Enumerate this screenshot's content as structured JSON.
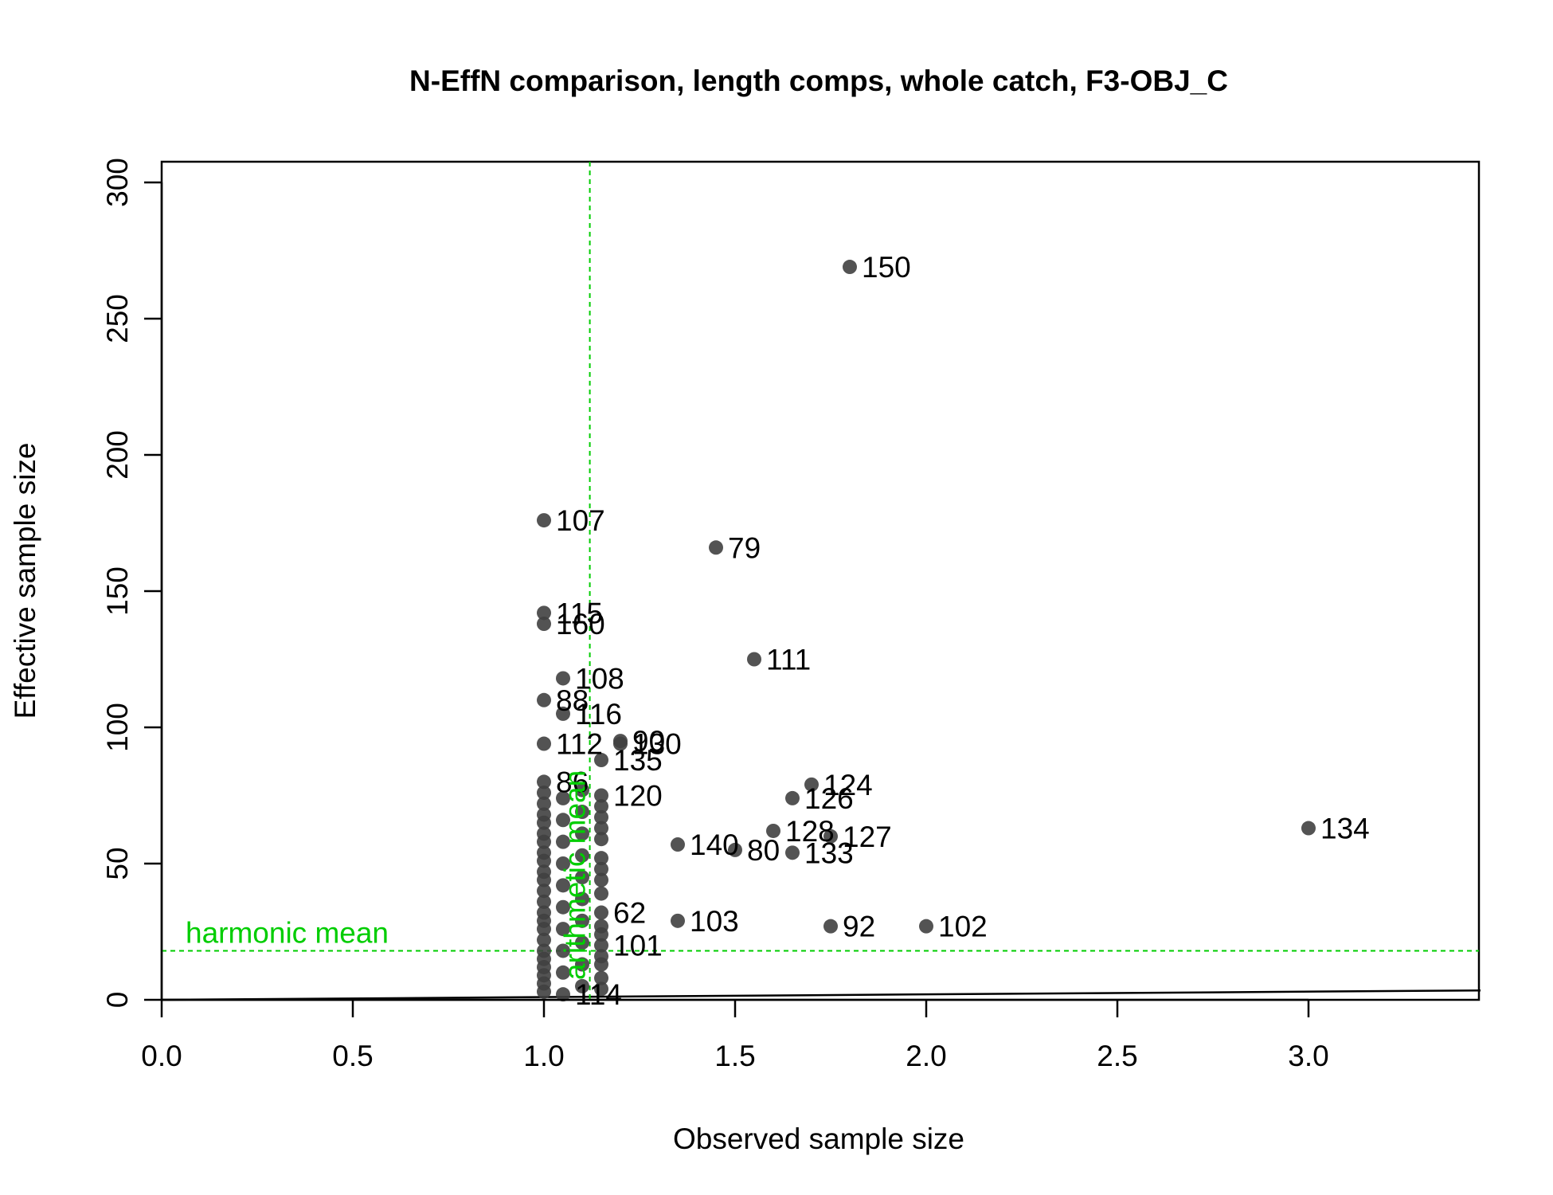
{
  "chart_data": {
    "type": "scatter",
    "title": "N-EffN comparison, length comps, whole catch, F3-OBJ_C",
    "xlabel": "Observed sample size",
    "ylabel": "Effective sample size",
    "xlim": [
      0,
      3.45
    ],
    "ylim": [
      0,
      300
    ],
    "x_ticks": [
      "0.0",
      "0.5",
      "1.0",
      "1.5",
      "2.0",
      "2.5",
      "3.0"
    ],
    "y_ticks": [
      "0",
      "50",
      "100",
      "150",
      "200",
      "250",
      "300"
    ],
    "point_color": "#404040",
    "reference_color": "#00cd00",
    "harmonic_mean": {
      "label": "harmonic mean",
      "y": 18
    },
    "arithmetic_mean": {
      "label": "arithmetic mean",
      "x": 1.12
    },
    "one_to_one_line": {
      "from": [
        0,
        0
      ],
      "to": [
        3.45,
        3.45
      ]
    },
    "points": [
      {
        "x": 1.8,
        "y": 269,
        "label": "150"
      },
      {
        "x": 1.0,
        "y": 176,
        "label": "107"
      },
      {
        "x": 1.45,
        "y": 166,
        "label": "79"
      },
      {
        "x": 1.0,
        "y": 142,
        "label": "115"
      },
      {
        "x": 1.0,
        "y": 138,
        "label": "160"
      },
      {
        "x": 1.55,
        "y": 125,
        "label": "111"
      },
      {
        "x": 1.05,
        "y": 118,
        "label": "108"
      },
      {
        "x": 1.0,
        "y": 110,
        "label": "88"
      },
      {
        "x": 1.05,
        "y": 105,
        "label": "116"
      },
      {
        "x": 1.0,
        "y": 94,
        "label": "112"
      },
      {
        "x": 1.2,
        "y": 95,
        "label": "90"
      },
      {
        "x": 1.2,
        "y": 94,
        "label": "130"
      },
      {
        "x": 1.15,
        "y": 88,
        "label": "135"
      },
      {
        "x": 1.0,
        "y": 80,
        "label": "86"
      },
      {
        "x": 1.15,
        "y": 75,
        "label": "120"
      },
      {
        "x": 1.7,
        "y": 79,
        "label": "124"
      },
      {
        "x": 1.65,
        "y": 74,
        "label": "126"
      },
      {
        "x": 1.6,
        "y": 62,
        "label": "128"
      },
      {
        "x": 1.75,
        "y": 60,
        "label": "127"
      },
      {
        "x": 3.0,
        "y": 63,
        "label": "134"
      },
      {
        "x": 1.35,
        "y": 57,
        "label": "140"
      },
      {
        "x": 1.5,
        "y": 55,
        "label": "80"
      },
      {
        "x": 1.65,
        "y": 54,
        "label": "133"
      },
      {
        "x": 1.15,
        "y": 32,
        "label": "62"
      },
      {
        "x": 1.35,
        "y": 29,
        "label": "103"
      },
      {
        "x": 1.75,
        "y": 27,
        "label": "92"
      },
      {
        "x": 2.0,
        "y": 27,
        "label": "102"
      },
      {
        "x": 1.15,
        "y": 20,
        "label": "101"
      },
      {
        "x": 1.05,
        "y": 2,
        "label": "114"
      },
      {
        "x": 1.0,
        "y": 76
      },
      {
        "x": 1.0,
        "y": 72
      },
      {
        "x": 1.0,
        "y": 68
      },
      {
        "x": 1.0,
        "y": 65
      },
      {
        "x": 1.0,
        "y": 61
      },
      {
        "x": 1.0,
        "y": 58
      },
      {
        "x": 1.0,
        "y": 54
      },
      {
        "x": 1.0,
        "y": 51
      },
      {
        "x": 1.0,
        "y": 47
      },
      {
        "x": 1.0,
        "y": 44
      },
      {
        "x": 1.0,
        "y": 40
      },
      {
        "x": 1.0,
        "y": 36
      },
      {
        "x": 1.0,
        "y": 32
      },
      {
        "x": 1.0,
        "y": 29
      },
      {
        "x": 1.0,
        "y": 26
      },
      {
        "x": 1.0,
        "y": 22
      },
      {
        "x": 1.0,
        "y": 18
      },
      {
        "x": 1.0,
        "y": 15
      },
      {
        "x": 1.0,
        "y": 12
      },
      {
        "x": 1.0,
        "y": 9
      },
      {
        "x": 1.0,
        "y": 6
      },
      {
        "x": 1.0,
        "y": 3
      },
      {
        "x": 1.05,
        "y": 74
      },
      {
        "x": 1.05,
        "y": 66
      },
      {
        "x": 1.05,
        "y": 58
      },
      {
        "x": 1.05,
        "y": 50
      },
      {
        "x": 1.05,
        "y": 42
      },
      {
        "x": 1.05,
        "y": 34
      },
      {
        "x": 1.05,
        "y": 26
      },
      {
        "x": 1.05,
        "y": 18
      },
      {
        "x": 1.05,
        "y": 10
      },
      {
        "x": 1.1,
        "y": 77
      },
      {
        "x": 1.1,
        "y": 69
      },
      {
        "x": 1.1,
        "y": 61
      },
      {
        "x": 1.1,
        "y": 53
      },
      {
        "x": 1.1,
        "y": 45
      },
      {
        "x": 1.1,
        "y": 37
      },
      {
        "x": 1.1,
        "y": 29
      },
      {
        "x": 1.1,
        "y": 21
      },
      {
        "x": 1.1,
        "y": 13
      },
      {
        "x": 1.1,
        "y": 5
      },
      {
        "x": 1.15,
        "y": 71
      },
      {
        "x": 1.15,
        "y": 67
      },
      {
        "x": 1.15,
        "y": 63
      },
      {
        "x": 1.15,
        "y": 59
      },
      {
        "x": 1.15,
        "y": 52
      },
      {
        "x": 1.15,
        "y": 48
      },
      {
        "x": 1.15,
        "y": 44
      },
      {
        "x": 1.15,
        "y": 39
      },
      {
        "x": 1.15,
        "y": 27
      },
      {
        "x": 1.15,
        "y": 24
      },
      {
        "x": 1.15,
        "y": 16
      },
      {
        "x": 1.15,
        "y": 13
      },
      {
        "x": 1.15,
        "y": 8
      },
      {
        "x": 1.15,
        "y": 4
      }
    ]
  }
}
